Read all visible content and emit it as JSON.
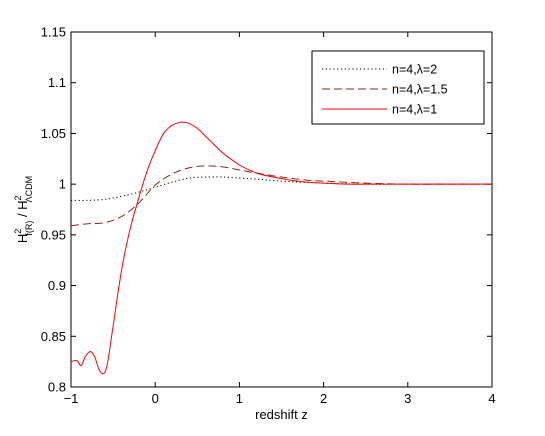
{
  "chart_data": {
    "type": "line",
    "title": "",
    "xlabel": "redshift z",
    "ylabel": {
      "base1": "H",
      "sup1": "2",
      "sub1": "f(R)",
      "sep": " / ",
      "base2": "H",
      "sup2": "2",
      "sub2": "ΛCDM"
    },
    "xlim": [
      -1,
      4
    ],
    "ylim": [
      0.8,
      1.15
    ],
    "xticks": [
      -1,
      0,
      1,
      2,
      3,
      4
    ],
    "yticks": [
      0.8,
      0.85,
      0.9,
      0.95,
      1,
      1.05,
      1.1,
      1.15
    ],
    "grid": false,
    "legend_position": "top-right",
    "series": [
      {
        "name": "n=4,λ=2",
        "color": "#000000",
        "dash": "dotted",
        "x": [
          -1,
          -0.8,
          -0.6,
          -0.4,
          -0.2,
          0,
          0.2,
          0.4,
          0.6,
          0.8,
          1.0,
          1.2,
          1.5,
          2.0,
          2.5,
          3.0,
          3.5,
          4.0
        ],
        "y": [
          0.984,
          0.984,
          0.985,
          0.988,
          0.992,
          0.997,
          1.002,
          1.006,
          1.007,
          1.007,
          1.006,
          1.005,
          1.003,
          1.001,
          1.0,
          1.0,
          1.0,
          1.0
        ]
      },
      {
        "name": "n=4,λ=1.5",
        "color": "#8b2a16",
        "dash": "dashed",
        "x": [
          -1,
          -0.8,
          -0.6,
          -0.4,
          -0.2,
          0,
          0.2,
          0.4,
          0.6,
          0.8,
          1.0,
          1.2,
          1.5,
          1.8,
          2.0,
          2.5,
          3.0,
          3.5,
          4.0
        ],
        "y": [
          0.959,
          0.961,
          0.962,
          0.968,
          0.981,
          0.999,
          1.01,
          1.016,
          1.018,
          1.017,
          1.014,
          1.011,
          1.007,
          1.004,
          1.003,
          1.001,
          1.0,
          1.0,
          1.0
        ]
      },
      {
        "name": "n=4,λ=1",
        "color": "#ff0000",
        "dash": "solid",
        "x": [
          -1,
          -0.93,
          -0.88,
          -0.83,
          -0.77,
          -0.72,
          -0.67,
          -0.62,
          -0.57,
          -0.5,
          -0.4,
          -0.3,
          -0.2,
          -0.1,
          0,
          0.1,
          0.2,
          0.3,
          0.35,
          0.4,
          0.5,
          0.6,
          0.7,
          0.8,
          1.0,
          1.2,
          1.4,
          1.6,
          1.8,
          2.0,
          2.3,
          2.6,
          3.0,
          3.5,
          4.0
        ],
        "y": [
          0.825,
          0.826,
          0.821,
          0.83,
          0.835,
          0.83,
          0.818,
          0.813,
          0.822,
          0.86,
          0.915,
          0.955,
          0.985,
          1.012,
          1.033,
          1.05,
          1.058,
          1.061,
          1.061,
          1.06,
          1.055,
          1.047,
          1.039,
          1.031,
          1.019,
          1.011,
          1.007,
          1.004,
          1.002,
          1.001,
          1.0,
          1.0,
          1.0,
          1.0,
          1.0
        ]
      }
    ]
  }
}
